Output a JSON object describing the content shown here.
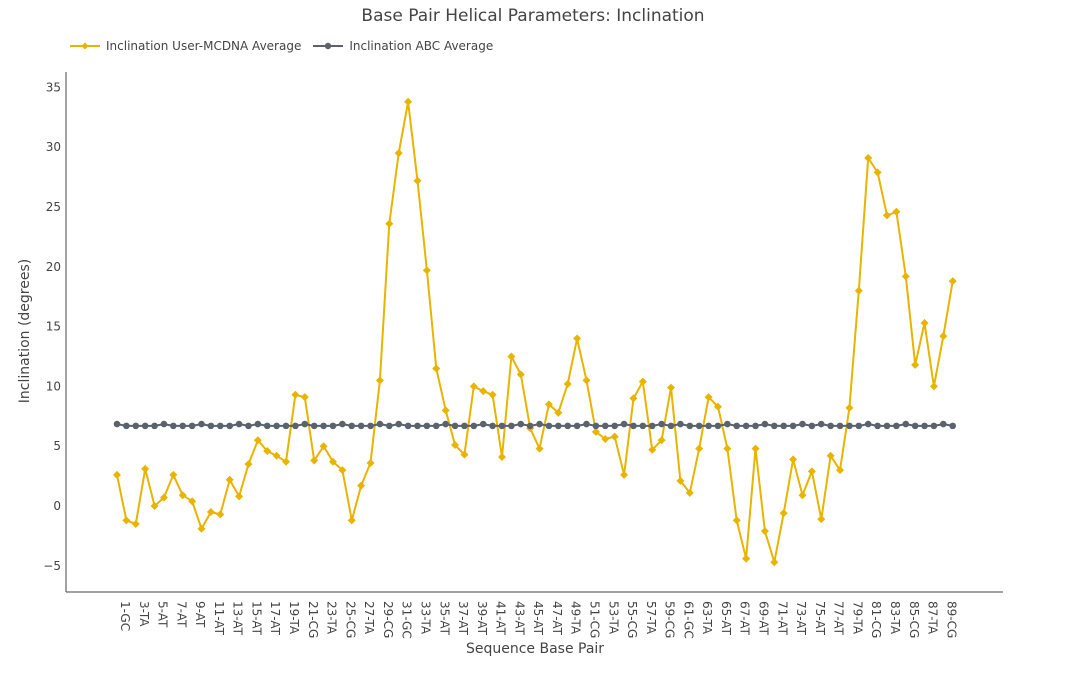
{
  "chart_data": {
    "type": "line",
    "title": "Base Pair Helical Parameters: Inclination",
    "xlabel": "Sequence Base Pair",
    "ylabel": "Inclination (degrees)",
    "ylim": [
      -6.5,
      36
    ],
    "yticks": [
      35,
      30,
      25,
      20,
      15,
      10,
      5,
      0,
      -5
    ],
    "ytick_labels": [
      "35",
      "30",
      "25",
      "20",
      "15",
      "10",
      "5",
      "0",
      "−5"
    ],
    "legend_position": "top-left",
    "tick_labels": [
      "1-GC",
      "3-TA",
      "5-AT",
      "7-AT",
      "9-AT",
      "11-AT",
      "13-AT",
      "15-AT",
      "17-AT",
      "19-TA",
      "21-CG",
      "23-TA",
      "25-CG",
      "27-TA",
      "29-CG",
      "31-GC",
      "33-TA",
      "35-AT",
      "37-AT",
      "39-AT",
      "41-AT",
      "43-AT",
      "45-AT",
      "47-AT",
      "49-TA",
      "51-CG",
      "53-TA",
      "55-CG",
      "57-TA",
      "59-CG",
      "61-GC",
      "63-TA",
      "65-AT",
      "67-AT",
      "69-AT",
      "71-AT",
      "73-AT",
      "75-AT",
      "77-AT",
      "79-TA",
      "81-CG",
      "83-TA",
      "85-CG",
      "87-TA",
      "89-CG"
    ],
    "series": [
      {
        "name": "Inclination User-MCDNA Average",
        "color": "#e8b400",
        "values": [
          2.6,
          -1.2,
          -1.5,
          3.1,
          0.0,
          0.7,
          2.6,
          0.9,
          0.4,
          -1.9,
          -0.5,
          -0.7,
          2.2,
          0.8,
          3.5,
          5.5,
          4.6,
          4.2,
          3.7,
          9.3,
          9.1,
          3.8,
          5.0,
          3.7,
          3.0,
          -1.2,
          1.7,
          3.6,
          10.5,
          23.6,
          29.5,
          33.8,
          27.2,
          19.7,
          11.5,
          8.0,
          5.1,
          4.3,
          10.0,
          9.6,
          9.3,
          4.1,
          12.5,
          11.0,
          6.5,
          4.8,
          8.5,
          7.8,
          10.2,
          14.0,
          10.5,
          6.2,
          5.6,
          5.8,
          2.6,
          9.0,
          10.4,
          4.7,
          5.5,
          9.9,
          2.1,
          1.1,
          4.8,
          9.1,
          8.3,
          4.8,
          -1.2,
          -4.4,
          4.8,
          -2.1,
          -4.7,
          -0.6,
          3.9,
          0.9,
          2.9,
          -1.1,
          4.2,
          3.0,
          8.2,
          18.0,
          29.1,
          27.9,
          24.3,
          24.6,
          19.2,
          11.8,
          15.3,
          10.0,
          14.2,
          18.8
        ]
      },
      {
        "name": "Inclination ABC Average",
        "color": "#5a626c",
        "values": [
          6.85,
          6.7,
          6.7,
          6.7,
          6.7,
          6.85,
          6.7,
          6.7,
          6.7,
          6.85,
          6.7,
          6.7,
          6.7,
          6.85,
          6.7,
          6.85,
          6.7,
          6.7,
          6.7,
          6.7,
          6.85,
          6.7,
          6.7,
          6.7,
          6.85,
          6.7,
          6.7,
          6.7,
          6.85,
          6.7,
          6.85,
          6.7,
          6.7,
          6.7,
          6.7,
          6.85,
          6.7,
          6.7,
          6.7,
          6.85,
          6.7,
          6.7,
          6.7,
          6.85,
          6.7,
          6.85,
          6.7,
          6.7,
          6.7,
          6.7,
          6.85,
          6.7,
          6.7,
          6.7,
          6.85,
          6.7,
          6.7,
          6.7,
          6.85,
          6.7,
          6.85,
          6.7,
          6.7,
          6.7,
          6.7,
          6.85,
          6.7,
          6.7,
          6.7,
          6.85,
          6.7,
          6.7,
          6.7,
          6.85,
          6.7,
          6.85,
          6.7,
          6.7,
          6.7,
          6.7,
          6.85,
          6.7,
          6.7,
          6.7,
          6.85,
          6.7,
          6.7,
          6.7,
          6.85,
          6.7
        ]
      }
    ]
  }
}
